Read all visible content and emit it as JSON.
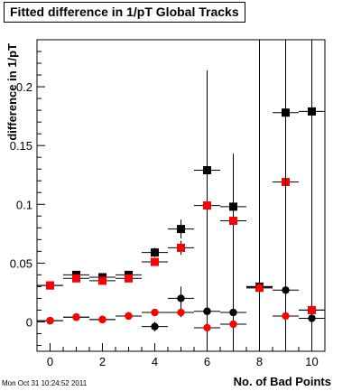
{
  "chart_data": {
    "type": "scatter",
    "title": "Fitted difference in 1/pT  Global Tracks",
    "xlabel": "No. of Bad Points",
    "ylabel": "difference in 1/pT",
    "xlim": [
      -0.5,
      10.5
    ],
    "ylim": [
      -0.025,
      0.24
    ],
    "xticks": [
      0,
      2,
      4,
      6,
      8,
      10
    ],
    "xtick_labels": [
      "0",
      "2",
      "4",
      "6",
      "8",
      "10"
    ],
    "yticks": [
      0,
      0.05,
      0.1,
      0.15,
      0.2
    ],
    "ytick_labels": [
      "0",
      "0.05",
      "0.1",
      "0.15",
      "0.2"
    ],
    "grid": false,
    "colors": {
      "black": "#000000",
      "red": "#ff0000"
    },
    "series": [
      {
        "marker": "square",
        "color": "#000000",
        "x": [
          0,
          1,
          2,
          3,
          4,
          5,
          6,
          7,
          8,
          9,
          10
        ],
        "y": [
          0.031,
          0.04,
          0.038,
          0.04,
          0.059,
          0.079,
          0.129,
          0.098,
          0.03,
          0.178,
          0.179
        ],
        "yerr": [
          0.001,
          0.001,
          0.001,
          0.002,
          0.004,
          0.008,
          0.085,
          0.045,
          0.21,
          0.21,
          0.21
        ]
      },
      {
        "marker": "square",
        "color": "#ff0000",
        "x": [
          0,
          1,
          2,
          3,
          4,
          5,
          6,
          7,
          8,
          9,
          10
        ],
        "y": [
          0.031,
          0.037,
          0.035,
          0.037,
          0.051,
          0.063,
          0.099,
          0.086,
          0.029,
          0.119,
          0.01
        ],
        "yerr": [
          0.001,
          0.001,
          0.001,
          0.002,
          0.003,
          0.006,
          0.03,
          0.025,
          0.0,
          0.0,
          0.0
        ]
      },
      {
        "marker": "circle",
        "color": "#000000",
        "x": [
          0,
          1,
          2,
          3,
          4,
          5,
          6,
          7,
          8,
          9,
          10
        ],
        "y": [
          0.001,
          0.004,
          0.002,
          0.005,
          -0.004,
          0.02,
          0.009,
          0.008,
          0.03,
          0.027,
          0.003
        ],
        "yerr": [
          0.001,
          0.001,
          0.001,
          0.002,
          0.004,
          0.01,
          0.05,
          0.045,
          0.21,
          0.21,
          0.21
        ]
      },
      {
        "marker": "circle",
        "color": "#ff0000",
        "x": [
          0,
          1,
          2,
          3,
          4,
          5,
          6,
          7,
          8,
          9,
          10
        ],
        "y": [
          0.001,
          0.004,
          0.002,
          0.005,
          0.008,
          0.008,
          -0.005,
          -0.002,
          0.029,
          0.005,
          0.01
        ],
        "yerr": [
          0.001,
          0.001,
          0.001,
          0.001,
          0.002,
          0.004,
          0.006,
          0.006,
          0.0,
          0.0,
          0.0
        ]
      }
    ]
  },
  "footer": {
    "timestamp": "Mon Oct 31 10:24:52 2011"
  }
}
